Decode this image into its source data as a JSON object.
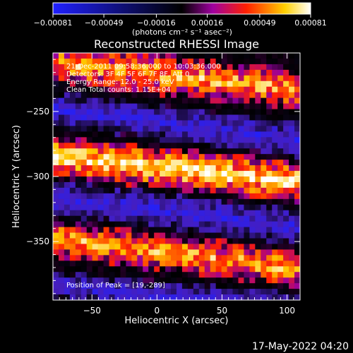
{
  "chart_data": {
    "type": "heatmap",
    "title": "Reconstructed RHESSI Image",
    "xlabel": "Heliocentric X (arcsec)",
    "ylabel": "Heliocentric Y (arcsec)",
    "xlim": [
      -80,
      110
    ],
    "ylim": [
      -395,
      -205
    ],
    "x_ticks": [
      -50,
      0,
      50,
      100
    ],
    "y_ticks": [
      -250,
      -300,
      -350
    ],
    "x_tick_labels": [
      "−50",
      "0",
      "50",
      "100"
    ],
    "y_tick_labels": [
      "−250",
      "−300",
      "−350"
    ],
    "colorbar": {
      "range": [
        -0.00081,
        0.00081
      ],
      "ticks": [
        -0.00081,
        -0.00049,
        -0.00016,
        0.00016,
        0.00049,
        0.00081
      ],
      "tick_labels": [
        "−0.00081",
        "−0.00049",
        "−0.00016",
        "0.00016",
        "0.00049",
        "0.00081"
      ],
      "unit_label": "(photons cm⁻² s⁻¹ asec⁻²)",
      "colors": [
        "#2020ff",
        "#000000",
        "#ff2000",
        "#ffff60",
        "#ffffff"
      ]
    },
    "annotations": [
      "21-Dec-2011 09:58:36.000 to 10:03:36.000",
      "Detectors: 3F 4F 5F 6F 7F 8F, Att 0",
      "Energy Range: 12.0 - 25.0 keV",
      "Clean     Total counts: 1.15E+04"
    ],
    "peak_label": "Position of Peak = [19,-289]",
    "bands": [
      {
        "level": 0.62,
        "y_at_xmin": -213,
        "y_at_xmax": -233,
        "width": 30
      },
      {
        "level": -0.62,
        "y_at_xmin": -248,
        "y_at_xmax": -272,
        "width": 26
      },
      {
        "level": 0.8,
        "y_at_xmin": -285,
        "y_at_xmax": -304,
        "width": 30
      },
      {
        "level": -0.62,
        "y_at_xmin": -316,
        "y_at_xmax": -339,
        "width": 26
      },
      {
        "level": 0.62,
        "y_at_xmin": -348,
        "y_at_xmax": -371,
        "width": 28
      },
      {
        "level": -0.55,
        "y_at_xmin": -384,
        "y_at_xmax": -400,
        "width": 20
      }
    ]
  },
  "footer": {
    "timestamp": "17-May-2022 04:20"
  }
}
